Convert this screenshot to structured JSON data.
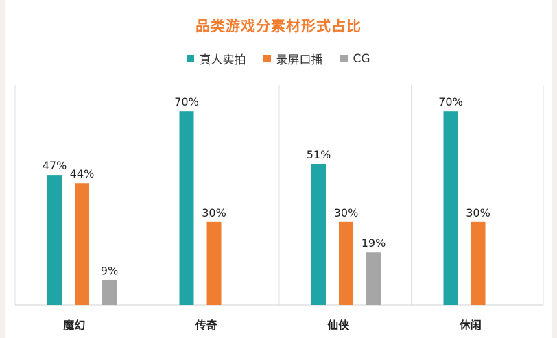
{
  "chart_data": {
    "type": "bar",
    "title": "品类游戏分素材形式占比",
    "categories": [
      "魔幻",
      "传奇",
      "仙侠",
      "休闲"
    ],
    "series": [
      {
        "name": "真人实拍",
        "color": "#1fa5a5",
        "values": [
          47,
          70,
          51,
          70
        ],
        "labels": [
          "47%",
          "70%",
          "51%",
          "70%"
        ]
      },
      {
        "name": "录屏口播",
        "color": "#ef7e30",
        "values": [
          44,
          30,
          30,
          30
        ],
        "labels": [
          "44%",
          "30%",
          "30%",
          "30%"
        ]
      },
      {
        "name": "CG",
        "color": "#a6a6a6",
        "values": [
          9,
          0,
          19,
          0
        ],
        "labels": [
          "9%",
          "",
          "19%",
          ""
        ]
      }
    ],
    "ylim": [
      0,
      100
    ],
    "grid": false,
    "legend_position": "top",
    "xlabel": "",
    "ylabel": ""
  },
  "colors": {
    "title": "#f07c30",
    "axis": "#d0d0d0",
    "divider": "#e2e2e2"
  }
}
